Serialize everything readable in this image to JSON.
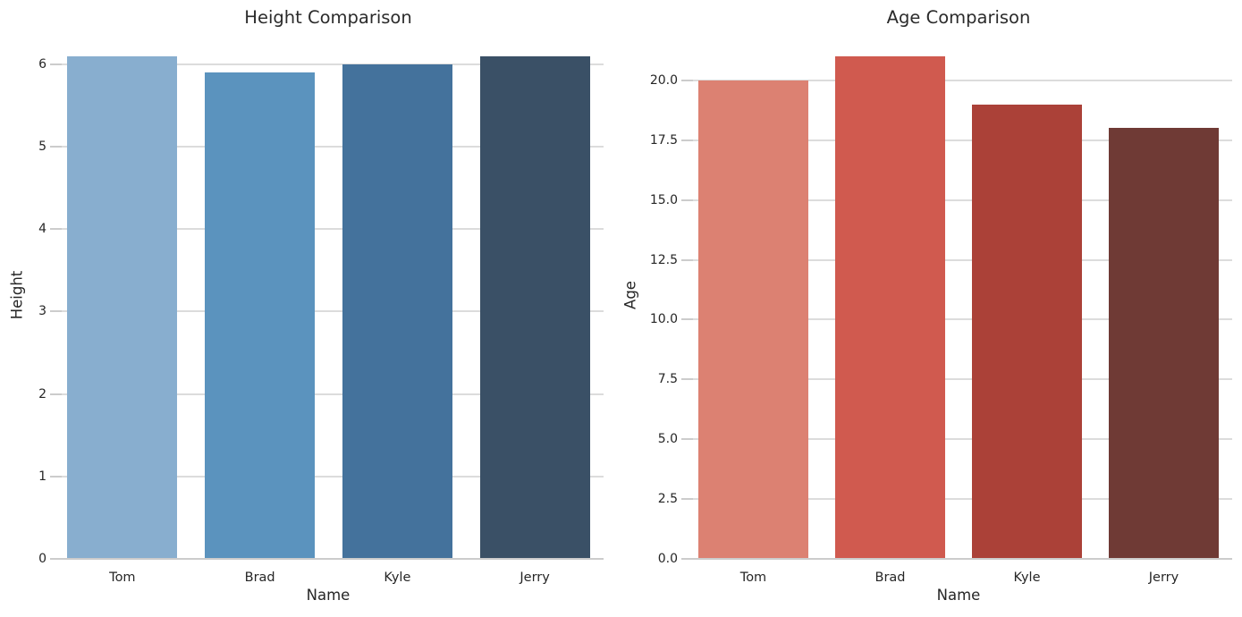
{
  "colors": {
    "background": "#ffffff",
    "grid": "#dcdcdc",
    "spine": "#cccccc",
    "text": "#262626",
    "title_text": "#2b2b2b"
  },
  "chart_data": [
    {
      "type": "bar",
      "title": "Height Comparison",
      "xlabel": "Name",
      "ylabel": "Height",
      "categories": [
        "Tom",
        "Brad",
        "Kyle",
        "Jerry"
      ],
      "values": [
        6.1,
        5.9,
        6.0,
        6.1
      ],
      "bar_colors": [
        "#88aecf",
        "#5b93be",
        "#44729c",
        "#3a5066"
      ],
      "ylim": [
        0,
        6.4
      ],
      "ytick_values": [
        0,
        1,
        2,
        3,
        4,
        5,
        6
      ],
      "ytick_labels": [
        "0",
        "1",
        "2",
        "3",
        "4",
        "5",
        "6"
      ],
      "grid": true,
      "legend": null
    },
    {
      "type": "bar",
      "title": "Age Comparison",
      "xlabel": "Name",
      "ylabel": "Age",
      "categories": [
        "Tom",
        "Brad",
        "Kyle",
        "Jerry"
      ],
      "values": [
        20,
        21,
        19,
        18
      ],
      "bar_colors": [
        "#dc8172",
        "#d05a4f",
        "#ab4138",
        "#6f3a35"
      ],
      "ylim": [
        0,
        22.05
      ],
      "ytick_values": [
        0,
        2.5,
        5,
        7.5,
        10,
        12.5,
        15,
        17.5,
        20
      ],
      "ytick_labels": [
        "0.0",
        "2.5",
        "5.0",
        "7.5",
        "10.0",
        "12.5",
        "15.0",
        "17.5",
        "20.0"
      ],
      "grid": true,
      "legend": null
    }
  ]
}
